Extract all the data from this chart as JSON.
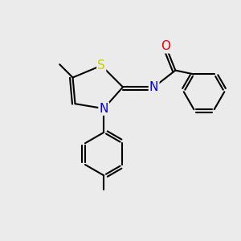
{
  "background_color": "#ebebeb",
  "atom_colors": {
    "C": "#000000",
    "N": "#0000ee",
    "O": "#ee0000",
    "S": "#cccc00"
  },
  "bond_color": "#000000",
  "bond_width": 1.5,
  "font_size_atom": 11
}
